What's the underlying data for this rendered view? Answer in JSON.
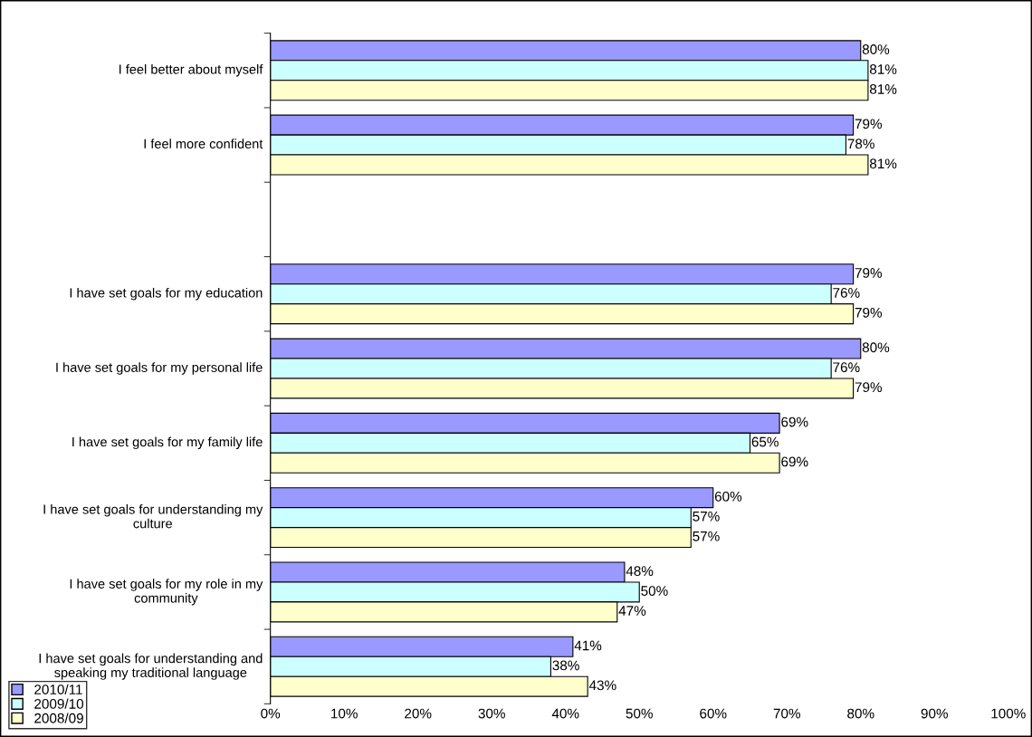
{
  "chart_data": {
    "type": "bar",
    "orientation": "horizontal",
    "categories": [
      "I feel better about myself",
      "I feel more confident",
      null,
      "I have set goals for my education",
      "I have set goals for my personal life",
      "I have set goals for my family life",
      "I have set goals for understanding my culture",
      "I have set goals for my role in my community",
      "I have set goals for understanding and speaking my traditional language"
    ],
    "series": [
      {
        "name": "2010/11",
        "color": "#9999ff",
        "values": [
          80,
          79,
          null,
          79,
          80,
          69,
          60,
          48,
          41
        ],
        "value_labels": [
          "80%",
          "79%",
          null,
          "79%",
          "80%",
          "69%",
          "60%",
          "48%",
          "41%"
        ]
      },
      {
        "name": "2009/10",
        "color": "#ccffff",
        "values": [
          81,
          78,
          null,
          76,
          76,
          65,
          57,
          50,
          38
        ],
        "value_labels": [
          "81%",
          "78%",
          null,
          "76%",
          "76%",
          "65%",
          "57%",
          "50%",
          "38%"
        ]
      },
      {
        "name": "2008/09",
        "color": "#ffffcc",
        "values": [
          81,
          81,
          null,
          79,
          79,
          69,
          57,
          47,
          43
        ],
        "value_labels": [
          "81%",
          "81%",
          null,
          "79%",
          "79%",
          "69%",
          "57%",
          "47%",
          "43%"
        ]
      }
    ],
    "xlim": [
      0,
      100
    ],
    "xticks": [
      {
        "value": 0,
        "label": "0%"
      },
      {
        "value": 10,
        "label": "10%"
      },
      {
        "value": 20,
        "label": "20%"
      },
      {
        "value": 30,
        "label": "30%"
      },
      {
        "value": 40,
        "label": "40%"
      },
      {
        "value": 50,
        "label": "50%"
      },
      {
        "value": 60,
        "label": "60%"
      },
      {
        "value": 70,
        "label": "70%"
      },
      {
        "value": 80,
        "label": "80%"
      },
      {
        "value": 90,
        "label": "90%"
      },
      {
        "value": 100,
        "label": "100%"
      }
    ],
    "legend": "bottom left",
    "grid": false
  }
}
